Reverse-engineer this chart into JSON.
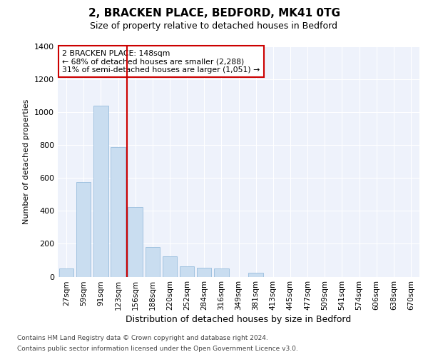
{
  "title1": "2, BRACKEN PLACE, BEDFORD, MK41 0TG",
  "title2": "Size of property relative to detached houses in Bedford",
  "xlabel": "Distribution of detached houses by size in Bedford",
  "ylabel": "Number of detached properties",
  "categories": [
    "27sqm",
    "59sqm",
    "91sqm",
    "123sqm",
    "156sqm",
    "188sqm",
    "220sqm",
    "252sqm",
    "284sqm",
    "316sqm",
    "349sqm",
    "381sqm",
    "413sqm",
    "445sqm",
    "477sqm",
    "509sqm",
    "541sqm",
    "574sqm",
    "606sqm",
    "638sqm",
    "670sqm"
  ],
  "values": [
    50,
    575,
    1040,
    790,
    425,
    178,
    125,
    65,
    55,
    50,
    0,
    25,
    0,
    0,
    0,
    0,
    0,
    0,
    0,
    0,
    0
  ],
  "bar_color": "#c9ddf0",
  "bar_edge_color": "#8ab4d8",
  "vline_pos": 4.0,
  "vline_color": "#cc0000",
  "annotation_text": "2 BRACKEN PLACE: 148sqm\n← 68% of detached houses are smaller (2,288)\n31% of semi-detached houses are larger (1,051) →",
  "annotation_box_facecolor": "#ffffff",
  "annotation_box_edgecolor": "#cc0000",
  "ylim": [
    0,
    1400
  ],
  "yticks": [
    0,
    200,
    400,
    600,
    800,
    1000,
    1200,
    1400
  ],
  "footer1": "Contains HM Land Registry data © Crown copyright and database right 2024.",
  "footer2": "Contains public sector information licensed under the Open Government Licence v3.0.",
  "axes_facecolor": "#eef2fb",
  "grid_color": "#ffffff",
  "title1_fontsize": 11,
  "title2_fontsize": 9,
  "ylabel_fontsize": 8,
  "xlabel_fontsize": 9
}
